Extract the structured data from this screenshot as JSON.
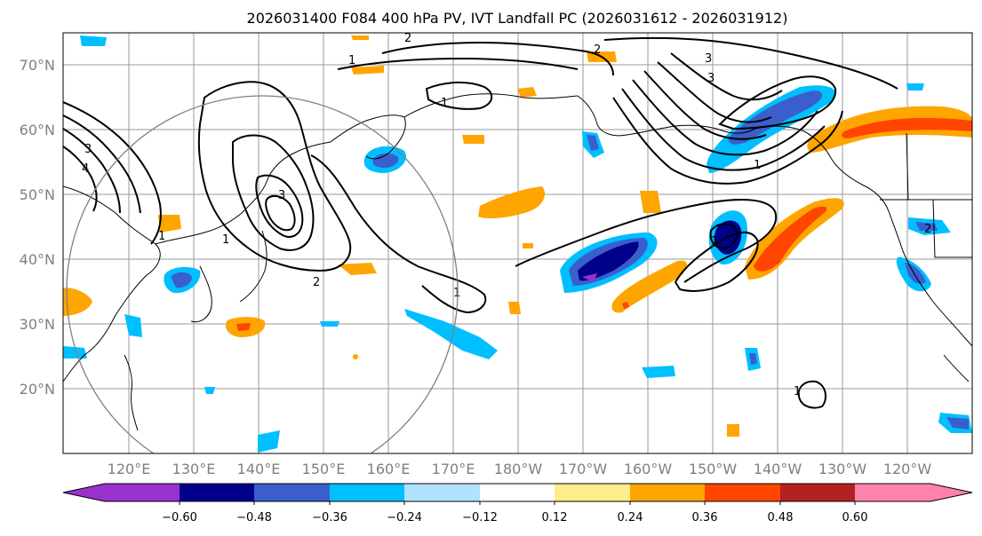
{
  "title": "2026031400 F084 400 hPa PV, IVT Landfall PC (2026031612 - 2026031912)",
  "lat_labels": [
    "70°N",
    "60°N",
    "50°N",
    "40°N",
    "30°N",
    "20°N"
  ],
  "lon_labels": [
    "120°E",
    "130°E",
    "140°E",
    "150°E",
    "160°E",
    "170°E",
    "180°W",
    "170°W",
    "160°W",
    "150°W",
    "140°W",
    "130°W",
    "120°W"
  ],
  "colorbar": {
    "colors": [
      "#9932cc",
      "#00008b",
      "#3a5fcd",
      "#00bfff",
      "#b0e2ff",
      "#ffffff",
      "#ffec8b",
      "#ffa500",
      "#ff4500",
      "#b22222",
      "#ff82ab"
    ],
    "ticks": [
      "−0.60",
      "−0.48",
      "−0.36",
      "−0.24",
      "−0.12",
      "0.12",
      "0.24",
      "0.36",
      "0.48",
      "0.60"
    ]
  },
  "contour_labels": [
    "1",
    "2",
    "3",
    "4",
    "2",
    "3",
    "1",
    "1",
    "2",
    "3",
    "1",
    "1",
    "1",
    "1",
    "1",
    "2"
  ]
}
